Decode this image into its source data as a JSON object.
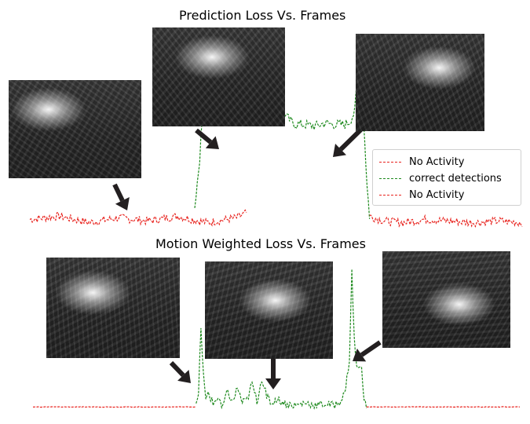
{
  "chart_data": [
    {
      "type": "line",
      "title": "Prediction Loss Vs. Frames",
      "xlabel": "",
      "ylabel": "",
      "x_range": [
        0,
        100
      ],
      "grid": false,
      "legend_position": "right",
      "series": [
        {
          "name": "No Activity",
          "color": "#e8231e",
          "style": "dashed",
          "points": [
            [
              0,
              0.08
            ],
            [
              6,
              0.1
            ],
            [
              12,
              0.06
            ],
            [
              18,
              0.09
            ],
            [
              24,
              0.07
            ],
            [
              30,
              0.1
            ],
            [
              36,
              0.06
            ],
            [
              40,
              0.08
            ],
            [
              42,
              0.09
            ],
            [
              44,
              0.12
            ]
          ]
        },
        {
          "name": "correct detections",
          "color": "#1e8a1e",
          "style": "dashed",
          "points": [
            [
              33.5,
              0.12
            ],
            [
              34.5,
              0.45
            ],
            [
              35,
              0.68
            ],
            [
              36,
              0.73
            ],
            [
              37,
              0.76
            ],
            [
              38,
              0.7
            ],
            [
              39,
              0.8
            ],
            [
              40,
              0.72
            ],
            [
              41,
              0.75
            ],
            [
              42,
              0.83
            ],
            [
              43,
              0.7
            ],
            [
              44,
              0.77
            ],
            [
              45,
              0.74
            ],
            [
              46,
              0.84
            ],
            [
              47,
              0.76
            ],
            [
              48,
              0.72
            ],
            [
              49,
              0.8
            ],
            [
              50,
              0.73
            ],
            [
              51,
              0.77
            ],
            [
              52,
              0.71
            ],
            [
              53,
              0.68
            ],
            [
              54,
              0.66
            ],
            [
              56,
              0.66
            ],
            [
              58,
              0.65
            ],
            [
              60,
              0.67
            ],
            [
              62,
              0.66
            ],
            [
              64,
              0.66
            ],
            [
              65,
              0.68
            ],
            [
              66,
              0.74
            ],
            [
              66.5,
              0.95
            ],
            [
              67,
              1.0
            ],
            [
              67.5,
              0.8
            ],
            [
              68,
              0.58
            ],
            [
              68.5,
              0.28
            ],
            [
              69,
              0.1
            ]
          ]
        },
        {
          "name": "No Activity",
          "color": "#e8231e",
          "style": "dashed",
          "points": [
            [
              69,
              0.1
            ],
            [
              72,
              0.07
            ],
            [
              76,
              0.06
            ],
            [
              80,
              0.08
            ],
            [
              85,
              0.07
            ],
            [
              90,
              0.06
            ],
            [
              95,
              0.07
            ],
            [
              100,
              0.06
            ]
          ]
        }
      ]
    },
    {
      "type": "line",
      "title": "Motion Weighted Loss Vs. Frames",
      "xlabel": "",
      "ylabel": "",
      "x_range": [
        0,
        100
      ],
      "grid": false,
      "series": [
        {
          "name": "",
          "color": "#e8231e",
          "style": "dashed",
          "points": [
            [
              0,
              0.01
            ],
            [
              10,
              0.01
            ],
            [
              20,
              0.01
            ],
            [
              30,
              0.01
            ],
            [
              33.5,
              0.01
            ]
          ]
        },
        {
          "name": "",
          "color": "#1e8a1e",
          "style": "dashed",
          "points": [
            [
              33.5,
              0.01
            ],
            [
              34,
              0.1
            ],
            [
              34.5,
              0.6
            ],
            [
              35,
              0.25
            ],
            [
              35.5,
              0.05
            ],
            [
              36,
              0.12
            ],
            [
              37,
              0.03
            ],
            [
              38,
              0.08
            ],
            [
              39,
              0.02
            ],
            [
              40,
              0.12
            ],
            [
              41,
              0.04
            ],
            [
              42,
              0.15
            ],
            [
              43,
              0.04
            ],
            [
              44,
              0.06
            ],
            [
              45,
              0.18
            ],
            [
              46,
              0.05
            ],
            [
              47,
              0.22
            ],
            [
              48,
              0.1
            ],
            [
              49,
              0.03
            ],
            [
              50,
              0.07
            ],
            [
              52,
              0.03
            ],
            [
              54,
              0.02
            ],
            [
              56,
              0.04
            ],
            [
              58,
              0.02
            ],
            [
              60,
              0.03
            ],
            [
              62,
              0.02
            ],
            [
              63,
              0.05
            ],
            [
              64,
              0.1
            ],
            [
              65,
              0.35
            ],
            [
              65.5,
              1.0
            ],
            [
              66,
              0.5
            ],
            [
              66.5,
              0.3
            ],
            [
              67,
              0.28
            ],
            [
              67.5,
              0.32
            ],
            [
              68,
              0.06
            ],
            [
              68.5,
              0.01
            ]
          ]
        },
        {
          "name": "",
          "color": "#e8231e",
          "style": "dashed",
          "points": [
            [
              68.5,
              0.01
            ],
            [
              75,
              0.01
            ],
            [
              85,
              0.01
            ],
            [
              100,
              0.01
            ]
          ]
        }
      ]
    }
  ],
  "legend": {
    "entries": [
      {
        "label": "No Activity",
        "color": "#e8231e"
      },
      {
        "label": "correct detections",
        "color": "#1e8a1e"
      },
      {
        "label": "No Activity",
        "color": "#e8231e"
      }
    ]
  },
  "thumbnails": [
    {
      "id": "top-left-frame",
      "glow_x": 0.3,
      "glow_y": 0.3
    },
    {
      "id": "top-middle-frame",
      "glow_x": 0.45,
      "glow_y": 0.3
    },
    {
      "id": "top-right-frame",
      "glow_x": 0.65,
      "glow_y": 0.35
    },
    {
      "id": "bottom-left-frame",
      "glow_x": 0.35,
      "glow_y": 0.35
    },
    {
      "id": "bottom-middle-frame",
      "glow_x": 0.55,
      "glow_y": 0.4
    },
    {
      "id": "bottom-right-frame",
      "glow_x": 0.6,
      "glow_y": 0.55
    }
  ]
}
